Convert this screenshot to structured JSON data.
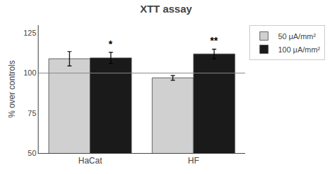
{
  "chart_data": {
    "type": "bar",
    "title": "XTT assay",
    "ylabel": "% over controls",
    "categories": [
      "HaCat",
      "HF"
    ],
    "series": [
      {
        "name": "50 μA/mm²",
        "color": "#d0d0d0",
        "values": [
          109.0,
          97.0
        ],
        "errors": [
          4.5,
          1.5
        ]
      },
      {
        "name": "100 μA/mm²",
        "color": "#1a1a1a",
        "values": [
          109.5,
          112.0
        ],
        "errors": [
          3.5,
          3.0
        ],
        "annotations": [
          "*",
          "**"
        ]
      }
    ],
    "reference_line": 100,
    "ylim": [
      50,
      130
    ],
    "yticks": [
      50,
      75,
      100,
      125
    ],
    "grid": false,
    "legend": "right"
  }
}
